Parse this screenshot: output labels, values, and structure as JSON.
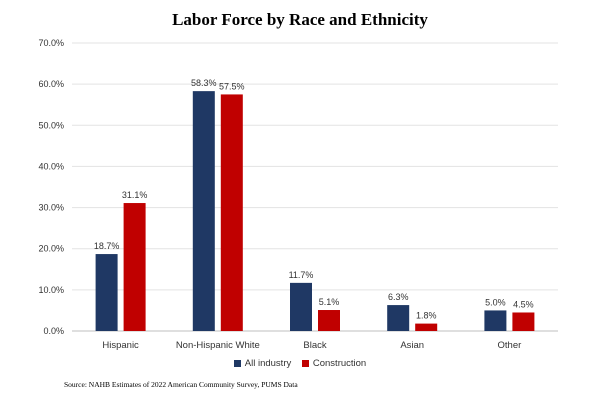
{
  "chart_data": {
    "type": "bar",
    "title": "Labor Force by Race and Ethnicity",
    "categories": [
      "Hispanic",
      "Non-Hispanic White",
      "Black",
      "Asian",
      "Other"
    ],
    "series": [
      {
        "name": "All industry",
        "color": "#1f3864",
        "values": [
          18.7,
          58.3,
          11.7,
          6.3,
          5.0
        ]
      },
      {
        "name": "Construction",
        "color": "#c00000",
        "values": [
          31.1,
          57.5,
          5.1,
          1.8,
          4.5
        ]
      }
    ],
    "ylim": [
      0,
      70
    ],
    "yticks": [
      "0.0%",
      "10.0%",
      "20.0%",
      "30.0%",
      "40.0%",
      "50.0%",
      "60.0%",
      "70.0%"
    ],
    "grid": true,
    "legend": "bottom",
    "source": "Source: NAHB Estimates of 2022 American Community Survey, PUMS Data"
  }
}
